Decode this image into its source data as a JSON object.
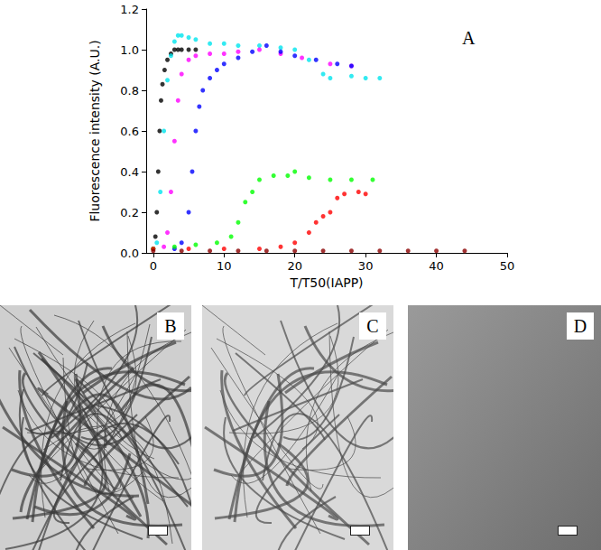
{
  "chart_data": {
    "type": "scatter",
    "marker": "circle",
    "x_label": "T/T50(IAPP)",
    "y_label": "Fluorescence intensity (A.U.)",
    "annotations": [
      "A"
    ],
    "xlim": [
      -1,
      50
    ],
    "xticks": [
      0,
      10,
      20,
      30,
      40,
      50
    ],
    "ylim": [
      0,
      1.2
    ],
    "yticks": [
      {
        "value": 0,
        "label": "0.0"
      },
      0.2,
      0.4,
      0.6,
      0.8,
      {
        "value": 1,
        "label": "1.0"
      },
      1.2
    ],
    "grid": false,
    "series": [
      {
        "color": "#000000",
        "x": [
          0,
          0.3,
          0.5,
          0.7,
          0.9,
          1.1,
          1.3,
          1.6,
          2,
          2.5,
          3,
          3.5,
          4,
          5,
          6
        ],
        "values": [
          0.02,
          0.08,
          0.2,
          0.4,
          0.6,
          0.75,
          0.83,
          0.9,
          0.95,
          0.98,
          1.0,
          1.0,
          1.0,
          1.0,
          1.0
        ]
      },
      {
        "color": "#00e5ee",
        "x": [
          0.5,
          1,
          1.5,
          2,
          2.5,
          3,
          3.5,
          4,
          5,
          6,
          8,
          10,
          12,
          15,
          18,
          20,
          22,
          24,
          25,
          28,
          30,
          32
        ],
        "values": [
          0.05,
          0.3,
          0.6,
          0.85,
          0.97,
          1.04,
          1.07,
          1.07,
          1.06,
          1.05,
          1.03,
          1.03,
          1.02,
          1.02,
          1.01,
          1.0,
          0.95,
          0.88,
          0.86,
          0.87,
          0.86,
          0.86
        ]
      },
      {
        "color": "#ff00ff",
        "x": [
          1.5,
          2,
          2.5,
          3,
          3.5,
          4,
          5,
          6,
          8,
          10,
          12,
          15,
          18,
          21,
          25,
          28
        ],
        "values": [
          0.03,
          0.1,
          0.3,
          0.55,
          0.75,
          0.88,
          0.95,
          0.97,
          0.98,
          0.98,
          0.99,
          1.0,
          0.98,
          0.96,
          0.93,
          0.92
        ]
      },
      {
        "color": "#0000ff",
        "x": [
          3,
          4,
          5,
          5.5,
          6,
          6.5,
          7,
          8,
          9,
          10,
          12,
          14,
          16,
          18,
          20,
          23,
          26,
          28
        ],
        "values": [
          0.02,
          0.05,
          0.2,
          0.4,
          0.6,
          0.72,
          0.8,
          0.86,
          0.9,
          0.93,
          0.96,
          0.99,
          1.02,
          0.99,
          0.97,
          0.95,
          0.93,
          0.92
        ]
      },
      {
        "color": "#00ff00",
        "x": [
          0,
          3,
          6,
          9,
          11,
          12,
          13,
          14,
          15,
          17,
          19,
          20,
          22,
          25,
          28,
          31
        ],
        "values": [
          0.02,
          0.03,
          0.04,
          0.05,
          0.08,
          0.15,
          0.25,
          0.3,
          0.36,
          0.38,
          0.38,
          0.4,
          0.37,
          0.36,
          0.36,
          0.36
        ]
      },
      {
        "color": "#ff0000",
        "x": [
          0,
          5,
          10,
          15,
          18,
          20,
          22,
          23,
          24,
          25,
          26,
          27,
          29,
          30
        ],
        "values": [
          0.02,
          0.02,
          0.02,
          0.02,
          0.03,
          0.05,
          0.1,
          0.15,
          0.18,
          0.2,
          0.27,
          0.29,
          0.3,
          0.29
        ]
      },
      {
        "color": "#8b0000",
        "x": [
          0,
          4,
          8,
          12,
          16,
          20,
          24,
          28,
          32,
          36,
          40,
          44
        ],
        "values": [
          0.01,
          0.01,
          0.01,
          0.01,
          0.01,
          0.01,
          0.01,
          0.01,
          0.01,
          0.01,
          0.01,
          0.01
        ]
      }
    ]
  },
  "images": [
    {
      "label": "B"
    },
    {
      "label": "C"
    },
    {
      "label": "D"
    }
  ]
}
